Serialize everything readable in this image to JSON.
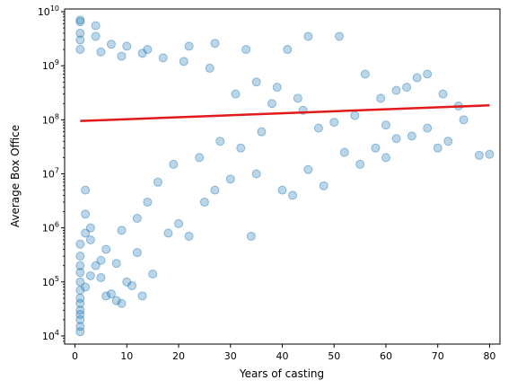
{
  "chart_data": {
    "type": "scatter",
    "title": "",
    "xlabel": "Years of casting",
    "ylabel": "Average Box Office",
    "xlim": [
      -2.0,
      82.0
    ],
    "ylim_log10": [
      3.85,
      10.05
    ],
    "y_scale": "log",
    "grid": false,
    "x_ticks": [
      0,
      10,
      20,
      30,
      40,
      50,
      60,
      70,
      80
    ],
    "x_tick_labels": [
      "0",
      "10",
      "20",
      "30",
      "40",
      "50",
      "60",
      "70",
      "80"
    ],
    "y_ticks": [
      10000,
      100000,
      1000000,
      10000000,
      100000000,
      1000000000,
      10000000000
    ],
    "y_tick_labels": [
      {
        "base": "10",
        "exp": "4"
      },
      {
        "base": "10",
        "exp": "5"
      },
      {
        "base": "10",
        "exp": "6"
      },
      {
        "base": "10",
        "exp": "7"
      },
      {
        "base": "10",
        "exp": "8"
      },
      {
        "base": "10",
        "exp": "9"
      },
      {
        "base": "10",
        "exp": "10"
      }
    ],
    "series": [
      {
        "kind": "scatter",
        "color": "#1f77b4",
        "alpha": 0.3,
        "points": [
          [
            1,
            7000000000
          ],
          [
            1,
            6500000000
          ],
          [
            1,
            4000000000
          ],
          [
            1,
            3000000000
          ],
          [
            1,
            2000000000
          ],
          [
            1,
            15000
          ],
          [
            1,
            12000
          ],
          [
            1,
            20000
          ],
          [
            1,
            25000
          ],
          [
            1,
            30000
          ],
          [
            1,
            40000
          ],
          [
            1,
            50000
          ],
          [
            1,
            70000
          ],
          [
            1,
            100000
          ],
          [
            1,
            150000
          ],
          [
            1,
            200000
          ],
          [
            1,
            300000
          ],
          [
            1,
            500000
          ],
          [
            2,
            1800000
          ],
          [
            2,
            800000
          ],
          [
            2,
            5000000
          ],
          [
            3,
            1000000
          ],
          [
            3,
            600000
          ],
          [
            4,
            200000
          ],
          [
            4,
            3500000000
          ],
          [
            4,
            5500000000
          ],
          [
            5,
            120000
          ],
          [
            6,
            55000
          ],
          [
            7,
            60000
          ],
          [
            8,
            45000
          ],
          [
            9,
            40000
          ],
          [
            10,
            100000
          ],
          [
            11,
            85000
          ],
          [
            13,
            55000
          ],
          [
            15,
            140000
          ],
          [
            8,
            220000
          ],
          [
            12,
            350000
          ],
          [
            18,
            800000
          ],
          [
            20,
            1200000
          ],
          [
            22,
            700000
          ],
          [
            25,
            3000000
          ],
          [
            27,
            5000000
          ],
          [
            30,
            8000000
          ],
          [
            34,
            700000
          ],
          [
            35,
            10000000
          ],
          [
            40,
            5000000
          ],
          [
            42,
            4000000
          ],
          [
            45,
            12000000
          ],
          [
            48,
            6000000
          ],
          [
            52,
            25000000
          ],
          [
            55,
            15000000
          ],
          [
            58,
            30000000
          ],
          [
            60,
            20000000
          ],
          [
            62,
            45000000
          ],
          [
            65,
            50000000
          ],
          [
            68,
            70000000
          ],
          [
            70,
            30000000
          ],
          [
            72,
            40000000
          ],
          [
            75,
            100000000
          ],
          [
            78,
            22000000
          ],
          [
            80,
            23000000
          ],
          [
            7,
            2500000000
          ],
          [
            10,
            2300000000
          ],
          [
            14,
            2000000000
          ],
          [
            22,
            2300000000
          ],
          [
            27,
            2600000000
          ],
          [
            33,
            2000000000
          ],
          [
            41,
            2000000000
          ],
          [
            45,
            3500000000
          ],
          [
            51,
            3500000000
          ],
          [
            56,
            700000000
          ],
          [
            64,
            400000000
          ],
          [
            66,
            600000000
          ],
          [
            68,
            700000000
          ],
          [
            71,
            300000000
          ],
          [
            74,
            180000000
          ],
          [
            60,
            80000000
          ],
          [
            50,
            90000000
          ],
          [
            44,
            150000000
          ],
          [
            38,
            200000000
          ],
          [
            36,
            60000000
          ],
          [
            32,
            30000000
          ],
          [
            28,
            40000000
          ],
          [
            24,
            20000000
          ],
          [
            19,
            15000000
          ],
          [
            16,
            7000000
          ],
          [
            14,
            3000000
          ],
          [
            12,
            1500000
          ],
          [
            9,
            900000
          ],
          [
            6,
            400000
          ],
          [
            5,
            250000
          ],
          [
            3,
            130000
          ],
          [
            2,
            80000
          ],
          [
            62,
            350000000
          ],
          [
            59,
            250000000
          ],
          [
            54,
            120000000
          ],
          [
            47,
            70000000
          ],
          [
            43,
            250000000
          ],
          [
            39,
            400000000
          ],
          [
            35,
            500000000
          ],
          [
            31,
            300000000
          ],
          [
            26,
            900000000
          ],
          [
            21,
            1200000000
          ],
          [
            17,
            1400000000
          ],
          [
            13,
            1700000000
          ],
          [
            9,
            1500000000
          ],
          [
            5,
            1800000000
          ]
        ]
      },
      {
        "kind": "trend_line",
        "color": "#e31a1c",
        "points": [
          [
            1,
            95000000
          ],
          [
            80,
            185000000
          ]
        ]
      }
    ]
  }
}
